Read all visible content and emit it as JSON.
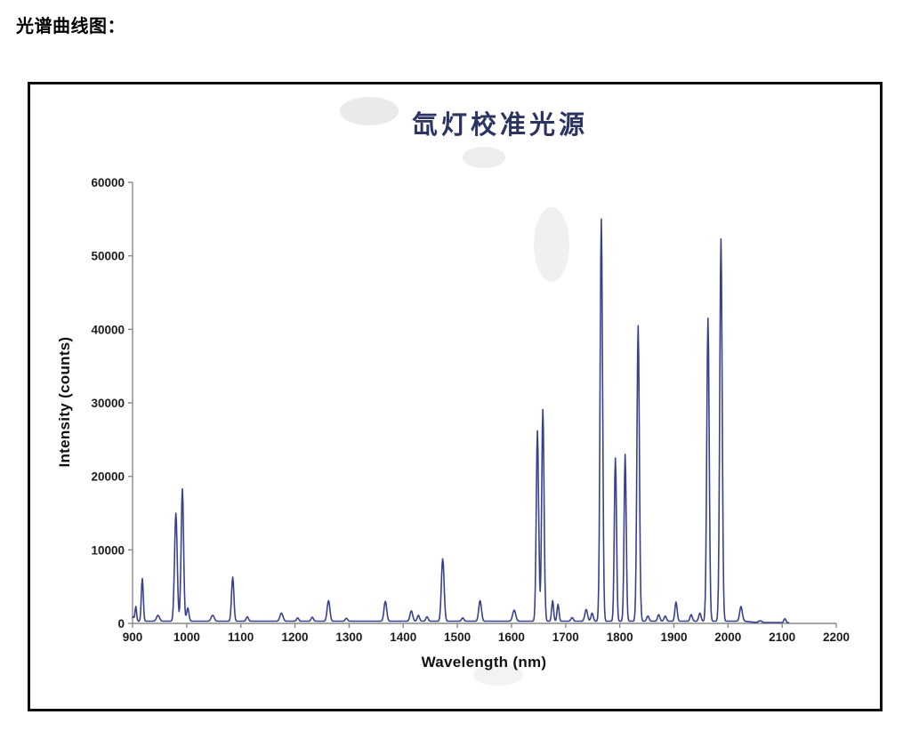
{
  "page": {
    "heading": "光谱曲线图："
  },
  "chart_data": {
    "type": "line",
    "title": "氙灯校准光源",
    "xlabel": "Wavelength (nm)",
    "ylabel": "Intensity (counts)",
    "xlim": [
      900,
      2200
    ],
    "ylim": [
      0,
      60000
    ],
    "x_ticks": [
      900,
      1000,
      1100,
      1200,
      1300,
      1400,
      1500,
      1600,
      1700,
      1800,
      1900,
      2000,
      2100,
      2200
    ],
    "y_ticks": [
      0,
      10000,
      20000,
      30000,
      40000,
      50000,
      60000
    ],
    "grid": false,
    "legend": "none",
    "line_color": "#39418f",
    "axis_color": "#8a8a8a",
    "baseline_counts": 300,
    "data_start_nm": 900,
    "data_end_nm": 2112,
    "peaks_format": [
      "wavelength_nm",
      "intensity_counts",
      "half_width_nm"
    ],
    "peaks": [
      [
        901,
        600,
        2.5
      ],
      [
        906,
        2000,
        2.0
      ],
      [
        918,
        5800,
        2.5
      ],
      [
        947,
        800,
        4.0
      ],
      [
        980,
        14700,
        3.5
      ],
      [
        992,
        18000,
        3.2
      ],
      [
        1002,
        1800,
        3.0
      ],
      [
        1048,
        800,
        4.0
      ],
      [
        1085,
        6000,
        3.0
      ],
      [
        1112,
        600,
        3.0
      ],
      [
        1175,
        1100,
        4.0
      ],
      [
        1205,
        450,
        3.0
      ],
      [
        1232,
        550,
        3.0
      ],
      [
        1262,
        2800,
        3.5
      ],
      [
        1295,
        400,
        3.0
      ],
      [
        1367,
        2700,
        3.5
      ],
      [
        1415,
        1400,
        3.5
      ],
      [
        1428,
        800,
        3.0
      ],
      [
        1444,
        600,
        3.0
      ],
      [
        1473,
        8500,
        3.5
      ],
      [
        1510,
        450,
        3.0
      ],
      [
        1542,
        2800,
        3.5
      ],
      [
        1605,
        1500,
        4.0
      ],
      [
        1648,
        25900,
        3.1
      ],
      [
        1658,
        28800,
        3.1
      ],
      [
        1676,
        2800,
        2.5
      ],
      [
        1686,
        2300,
        2.5
      ],
      [
        1712,
        500,
        3.0
      ],
      [
        1738,
        1600,
        3.5
      ],
      [
        1749,
        1100,
        3.0
      ],
      [
        1766,
        54700,
        3.2
      ],
      [
        1792,
        22200,
        2.8
      ],
      [
        1810,
        22700,
        2.8
      ],
      [
        1834,
        40200,
        3.2
      ],
      [
        1852,
        700,
        3.0
      ],
      [
        1872,
        900,
        3.0
      ],
      [
        1884,
        700,
        3.0
      ],
      [
        1904,
        2600,
        3.0
      ],
      [
        1932,
        900,
        3.0
      ],
      [
        1948,
        1100,
        3.0
      ],
      [
        1963,
        41200,
        3.2
      ],
      [
        1987,
        52000,
        3.2
      ],
      [
        2024,
        2000,
        3.5
      ],
      [
        2060,
        300,
        5.0
      ],
      [
        2105,
        600,
        3.0
      ]
    ]
  }
}
